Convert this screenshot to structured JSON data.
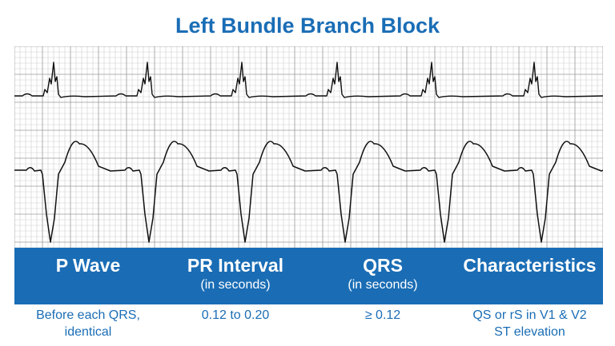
{
  "title": "Left Bundle Branch Block",
  "columns": [
    {
      "header": "P Wave",
      "unit": "",
      "value_lines": [
        "Before each QRS,",
        "identical"
      ]
    },
    {
      "header": "PR Interval",
      "unit": "(in seconds)",
      "value_lines": [
        "0.12 to 0.20"
      ]
    },
    {
      "header": "QRS",
      "unit": "(in seconds)",
      "value_lines": [
        "≥ 0.12"
      ]
    },
    {
      "header": "Characteristics",
      "unit": "",
      "value_lines": [
        "QS or rS in V1 & V2",
        "ST elevation"
      ]
    }
  ],
  "colors": {
    "accent": "#1a6db5",
    "grid_minor": "#cfcfcf",
    "grid_major": "#9a9a9a",
    "trace": "#111111"
  }
}
